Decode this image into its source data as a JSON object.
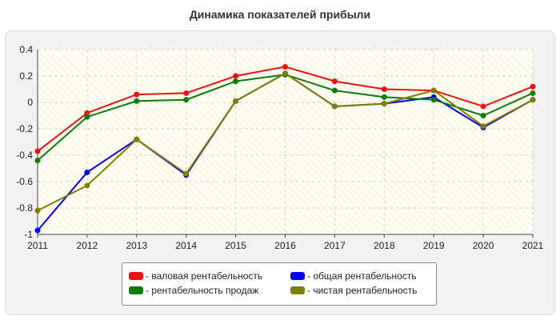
{
  "page": {
    "title": "Динамика показателей прибыли"
  },
  "chart_data": {
    "type": "line",
    "title": "Динамика показателей прибыли",
    "xlabel": "",
    "ylabel": "",
    "x": [
      "2011",
      "2012",
      "2013",
      "2014",
      "2015",
      "2016",
      "2017",
      "2018",
      "2019",
      "2020",
      "2021"
    ],
    "ylim": [
      -1,
      0.4
    ],
    "yticks": [
      -1,
      -0.8,
      -0.6,
      -0.4,
      -0.2,
      0,
      0.2,
      0.4
    ],
    "ytick_labels": [
      "-1",
      "-0.8",
      "-0.6",
      "-0.4",
      "-0.2",
      "0",
      "0.2",
      "0.4"
    ],
    "grid": true,
    "legend_position": "bottom",
    "series": [
      {
        "name": "- валовая рентабельность",
        "color": "#ee1111",
        "values": [
          -0.37,
          -0.08,
          0.06,
          0.07,
          0.2,
          0.27,
          0.16,
          0.1,
          0.09,
          -0.03,
          0.12
        ]
      },
      {
        "name": "- общая рентабельность",
        "color": "#0000ee",
        "values": [
          -0.97,
          -0.53,
          -0.28,
          -0.55,
          0.01,
          0.22,
          -0.03,
          -0.01,
          0.04,
          -0.19,
          0.02
        ]
      },
      {
        "name": "- рентабельность продаж",
        "color": "#0a7d0a",
        "values": [
          -0.44,
          -0.11,
          0.01,
          0.02,
          0.16,
          0.21,
          0.09,
          0.04,
          0.02,
          -0.1,
          0.07
        ]
      },
      {
        "name": "- чистая рентабельность",
        "color": "#808000",
        "values": [
          -0.82,
          -0.63,
          -0.28,
          -0.54,
          0.01,
          0.22,
          -0.03,
          -0.01,
          0.09,
          -0.18,
          0.02
        ]
      }
    ]
  }
}
